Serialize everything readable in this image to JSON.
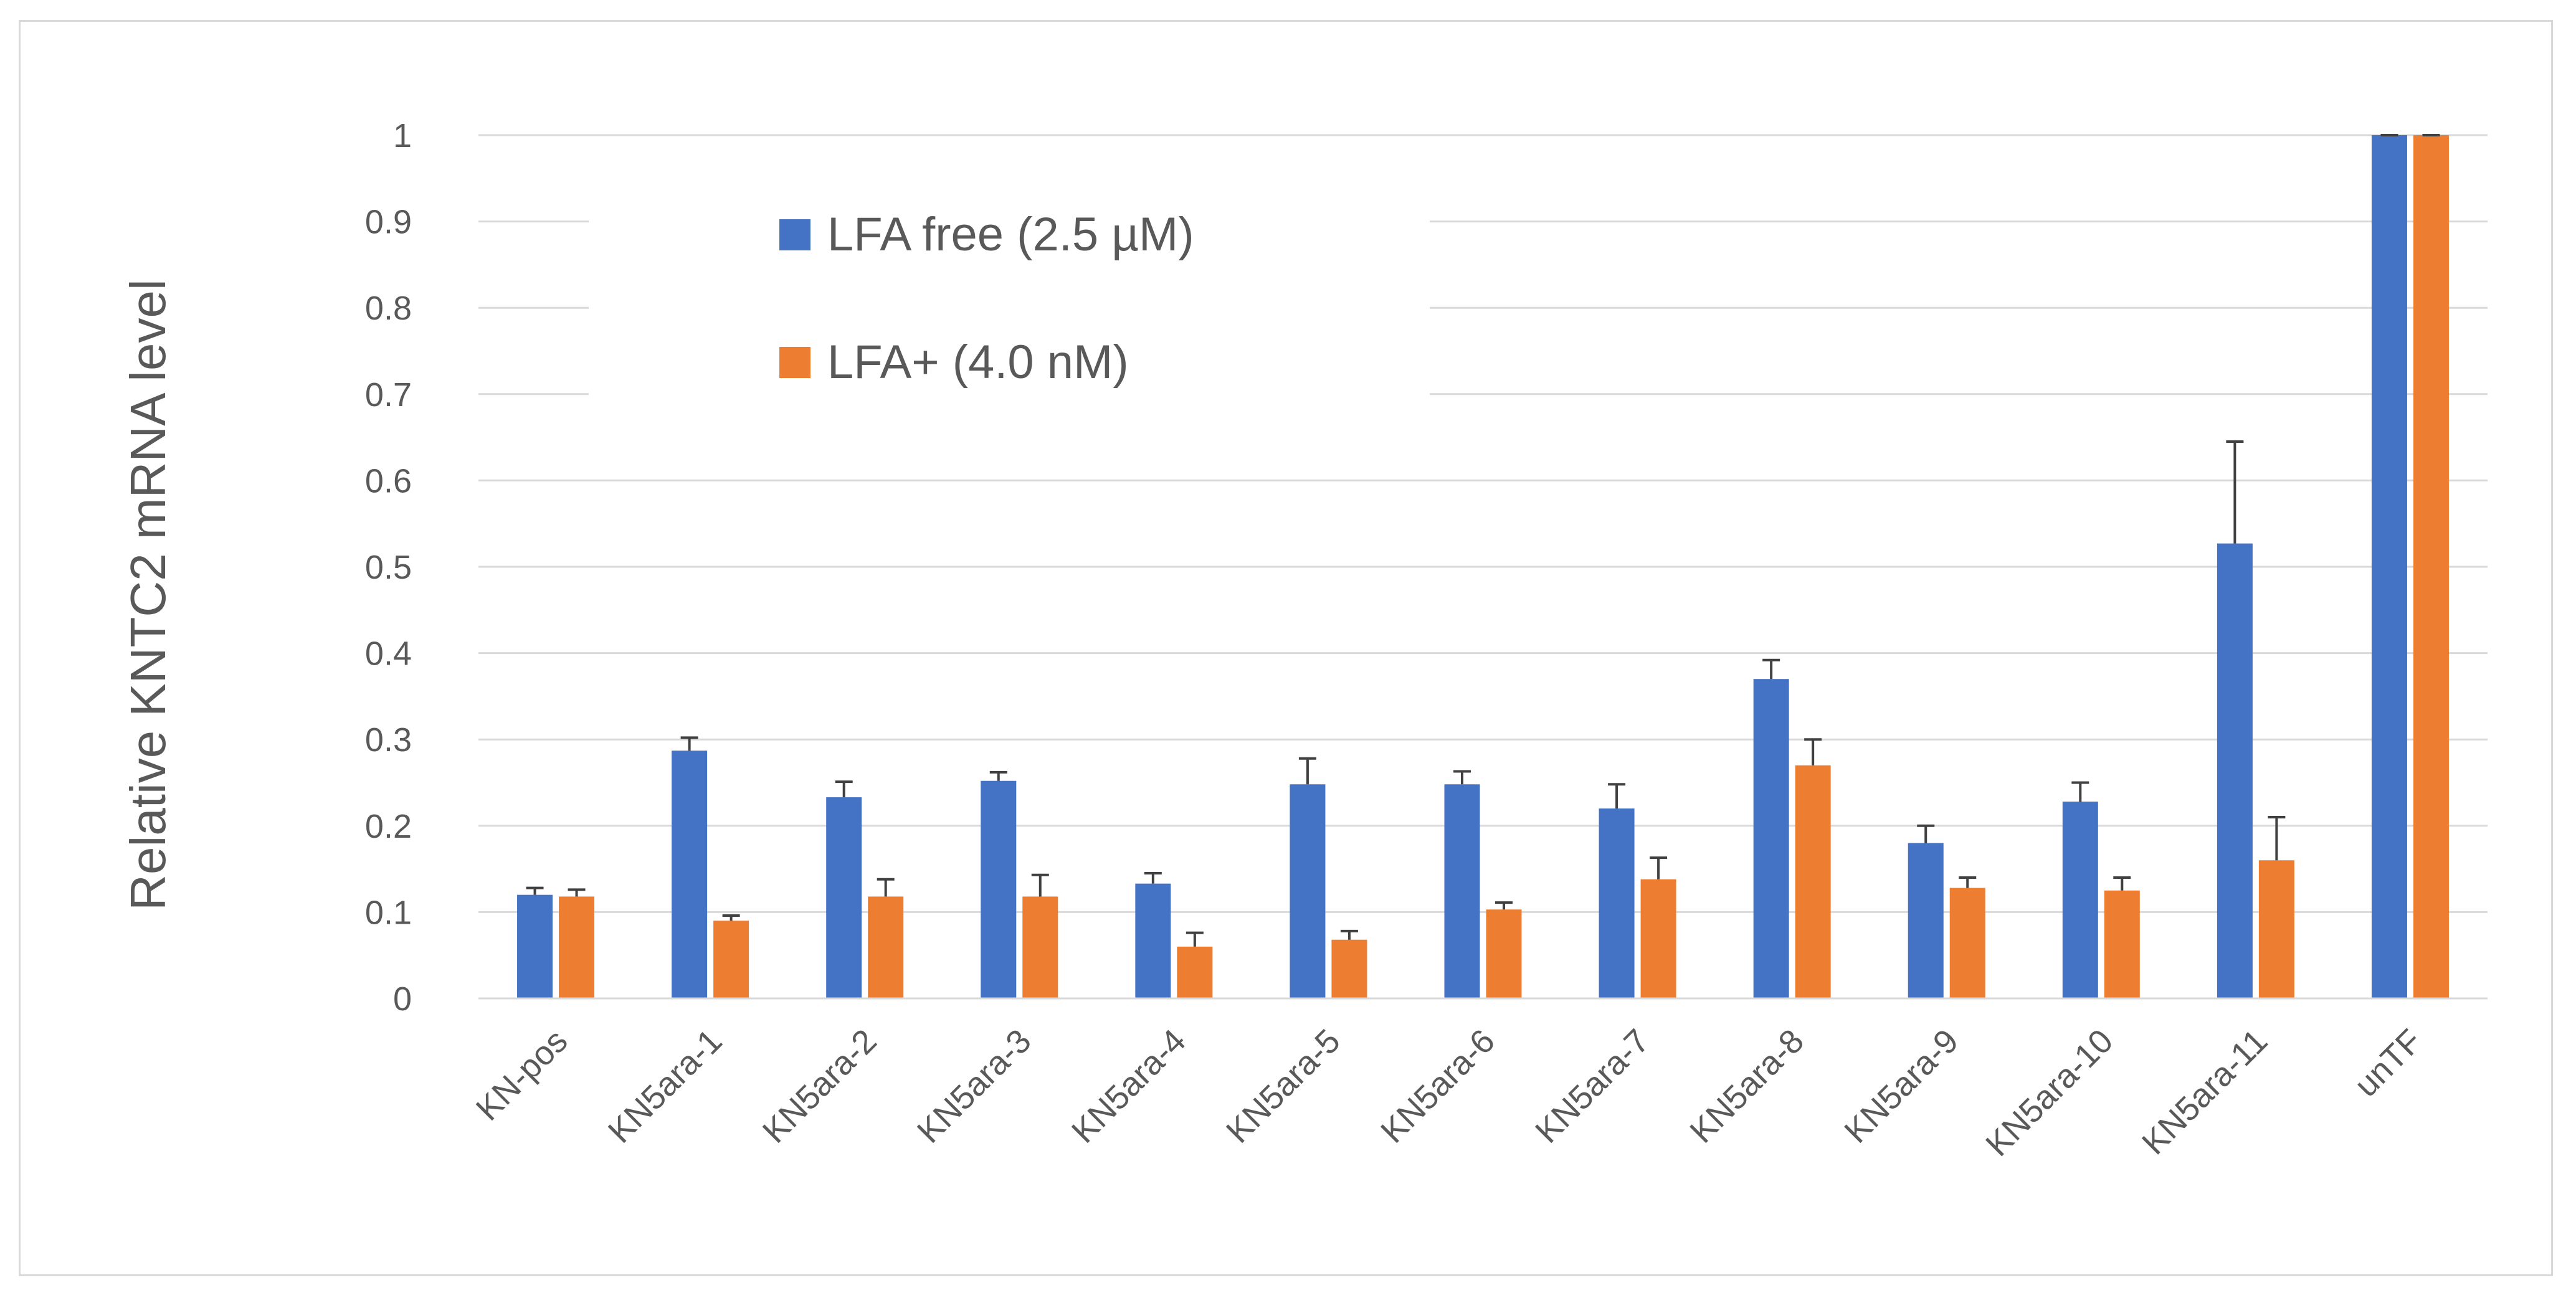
{
  "chart_data": {
    "type": "bar",
    "title": "",
    "xlabel": "",
    "ylabel": "Relative KNTC2 mRNA level",
    "ylim": [
      0,
      1
    ],
    "yticks": [
      0,
      0.1,
      0.2,
      0.3,
      0.4,
      0.5,
      0.6,
      0.7,
      0.8,
      0.9,
      1
    ],
    "grid": true,
    "legend_position": "top-left",
    "categories": [
      "KN-pos",
      "KN5ara-1",
      "KN5ara-2",
      "KN5ara-3",
      "KN5ara-4",
      "KN5ara-5",
      "KN5ara-6",
      "KN5ara-7",
      "KN5ara-8",
      "KN5ara-9",
      "KN5ara-10",
      "KN5ara-11",
      "unTF"
    ],
    "series": [
      {
        "name": "LFA free (2.5 µM)",
        "color": "#4472c4",
        "values": [
          0.12,
          0.287,
          0.233,
          0.252,
          0.133,
          0.248,
          0.248,
          0.22,
          0.37,
          0.18,
          0.228,
          0.527,
          1.0
        ],
        "errors": [
          0.008,
          0.015,
          0.018,
          0.01,
          0.012,
          0.03,
          0.015,
          0.028,
          0.022,
          0.02,
          0.022,
          0.118,
          0.0
        ]
      },
      {
        "name": "LFA+ (4.0 nM)",
        "color": "#ed7d31",
        "values": [
          0.118,
          0.09,
          0.118,
          0.118,
          0.06,
          0.068,
          0.103,
          0.138,
          0.27,
          0.128,
          0.125,
          0.16,
          1.0
        ],
        "errors": [
          0.008,
          0.006,
          0.02,
          0.025,
          0.016,
          0.01,
          0.008,
          0.025,
          0.03,
          0.012,
          0.015,
          0.05,
          0.0
        ]
      }
    ]
  }
}
